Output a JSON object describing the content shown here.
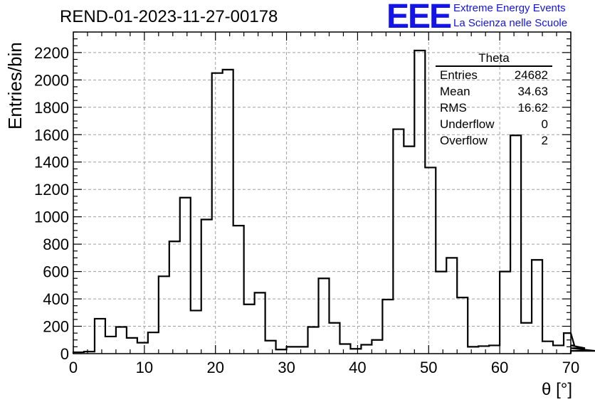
{
  "title": "REND-01-2023-11-27-00178",
  "logo": {
    "mark": "EEE",
    "line1": "Extreme Energy Events",
    "line2": "La Scienza nelle Scuole",
    "color": "#1414e6"
  },
  "stats": {
    "title": "Theta",
    "rows": [
      {
        "label": "Entries",
        "value": "24682"
      },
      {
        "label": "Mean",
        "value": "34.63"
      },
      {
        "label": "RMS",
        "value": "16.62"
      },
      {
        "label": "Underflow",
        "value": "0"
      },
      {
        "label": "Overflow",
        "value": "2"
      }
    ]
  },
  "chart_data": {
    "type": "bar",
    "style": "step-histogram",
    "title": "REND-01-2023-11-27-00178",
    "xlabel": "θ [°]",
    "ylabel": "Entries/bin",
    "xlim": [
      0,
      70
    ],
    "ylim": [
      0,
      2350
    ],
    "bin_width": 1.5,
    "x_ticks": [
      0,
      10,
      20,
      30,
      40,
      50,
      60,
      70
    ],
    "y_ticks": [
      0,
      200,
      400,
      600,
      800,
      1000,
      1200,
      1400,
      1600,
      1800,
      2000,
      2200
    ],
    "grid": true,
    "values": [
      10,
      15,
      255,
      125,
      195,
      115,
      80,
      155,
      565,
      820,
      1140,
      315,
      980,
      2050,
      2075,
      935,
      360,
      445,
      95,
      30,
      50,
      50,
      195,
      550,
      225,
      70,
      35,
      65,
      100,
      395,
      1640,
      1515,
      2215,
      1360,
      600,
      700,
      410,
      50,
      55,
      60,
      600,
      1595,
      225,
      685,
      90,
      60,
      150,
      60,
      40,
      20
    ]
  }
}
